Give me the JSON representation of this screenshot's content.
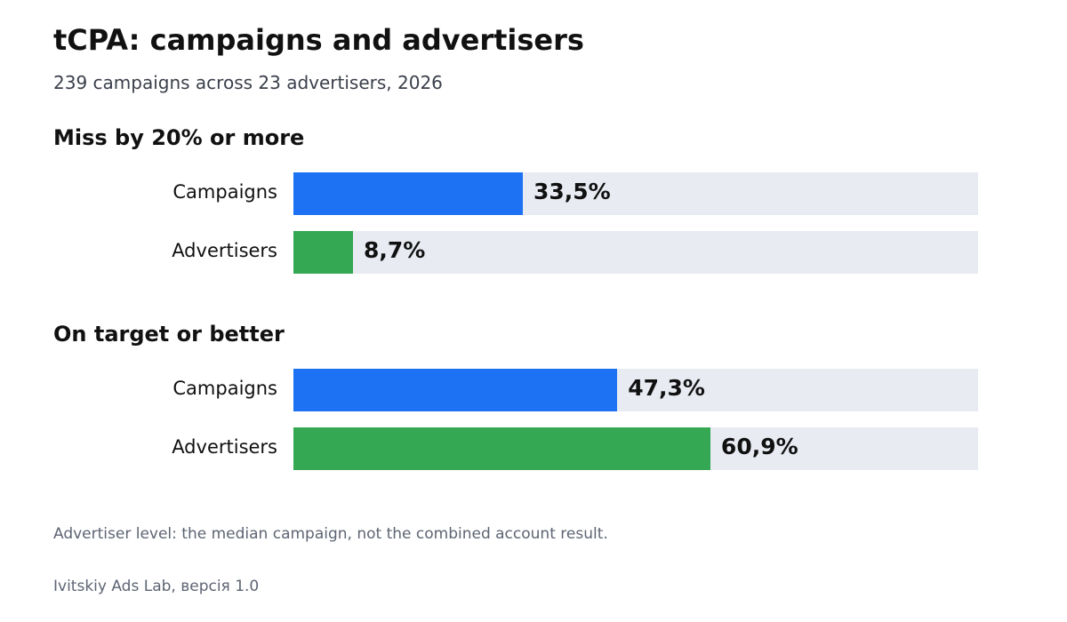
{
  "chart_data": {
    "type": "bar",
    "orientation": "horizontal",
    "title": "tCPA: campaigns and advertisers",
    "subtitle": "239 campaigns across 23 advertisers, 2026",
    "xlim": [
      0,
      100
    ],
    "unit": "%",
    "grid": false,
    "groups": [
      {
        "title": "Miss by 20% or more",
        "bars": [
          {
            "label": "Campaigns",
            "value": 33.5,
            "value_label": "33,5%",
            "color": "#1d72f3"
          },
          {
            "label": "Advertisers",
            "value": 8.7,
            "value_label": "8,7%",
            "color": "#34a853"
          }
        ]
      },
      {
        "title": "On target or better",
        "bars": [
          {
            "label": "Campaigns",
            "value": 47.3,
            "value_label": "47,3%",
            "color": "#1d72f3"
          },
          {
            "label": "Advertisers",
            "value": 60.9,
            "value_label": "60,9%",
            "color": "#34a853"
          }
        ]
      }
    ],
    "note": "Advertiser level: the median campaign, not the combined account result.",
    "credit": "Ivitskiy Ads Lab, версія 1.0"
  },
  "colors": {
    "campaigns": "#1d72f3",
    "advertisers": "#34a853",
    "track": "#e8ebf2"
  }
}
